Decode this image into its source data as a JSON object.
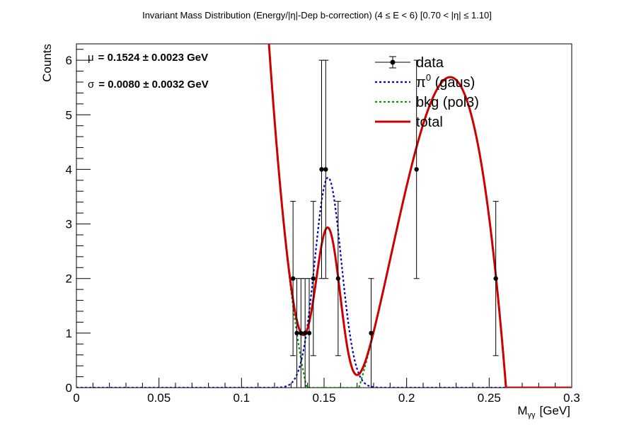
{
  "chart_data": {
    "type": "scatter",
    "title": "Invariant Mass Distribution (Energy/|η|-Dep b-correction)   (4 ≤ E < 6)   [0.70 < |η| ≤ 1.10]",
    "xlabel_main": "M",
    "xlabel_sub": "γγ",
    "xlabel_unit": "[GeV]",
    "ylabel": "Counts",
    "xlim": [
      0,
      0.3
    ],
    "ylim": [
      0,
      6.3
    ],
    "x_ticks": [
      0,
      0.05,
      0.1,
      0.15,
      0.2,
      0.25,
      0.3
    ],
    "x_tick_labels": [
      "0",
      "0.05",
      "0.1",
      "0.15",
      "0.2",
      "0.25",
      "0.3"
    ],
    "y_ticks": [
      0,
      1,
      2,
      3,
      4,
      5,
      6
    ],
    "y_tick_labels": [
      "0",
      "1",
      "2",
      "3",
      "4",
      "5",
      "6"
    ],
    "stats": {
      "mu_symbol": "μ",
      "mu_text": "= 0.1524  ± 0.0023 GeV",
      "sigma_symbol": "σ",
      "sigma_text": "= 0.0080  ± 0.0032 GeV"
    },
    "legend": {
      "placement": "top-right",
      "entries": [
        {
          "label": "data",
          "style": "marker",
          "color": "#000000"
        },
        {
          "label": "π",
          "sup": "0",
          "suffix": " (gaus)",
          "style": "dotted",
          "color": "#0000cc"
        },
        {
          "label": "bkg (pol3)",
          "style": "dotted",
          "color": "#009900"
        },
        {
          "label": "total",
          "style": "solid",
          "color": "#cc0000"
        }
      ]
    },
    "data_points": [
      {
        "x": 0.1312,
        "y": 2,
        "err": 1.414
      },
      {
        "x": 0.1335,
        "y": 1,
        "err": 1.0
      },
      {
        "x": 0.136,
        "y": 1,
        "err": 1.0
      },
      {
        "x": 0.1385,
        "y": 1,
        "err": 1.0
      },
      {
        "x": 0.141,
        "y": 1,
        "err": 1.0
      },
      {
        "x": 0.1435,
        "y": 2,
        "err": 1.414
      },
      {
        "x": 0.1485,
        "y": 4,
        "err": 2.0
      },
      {
        "x": 0.151,
        "y": 4,
        "err": 2.0
      },
      {
        "x": 0.1585,
        "y": 2,
        "err": 1.414
      },
      {
        "x": 0.1785,
        "y": 1,
        "err": 1.0
      },
      {
        "x": 0.206,
        "y": 4,
        "err": 2.0
      },
      {
        "x": 0.254,
        "y": 2,
        "err": 1.414
      }
    ],
    "fit": {
      "gaus": {
        "amp": 3.85,
        "mean": 0.1524,
        "sigma": 0.008,
        "color": "#0000cc"
      },
      "bkg_points": [
        [
          0.1166,
          6.3
        ],
        [
          0.1335,
          1.0
        ],
        [
          0.1783,
          0.8
        ],
        [
          0.2265,
          5.69
        ],
        [
          0.2602,
          0.0
        ]
      ],
      "bkg_color": "#009900",
      "total_color": "#cc0000"
    }
  }
}
